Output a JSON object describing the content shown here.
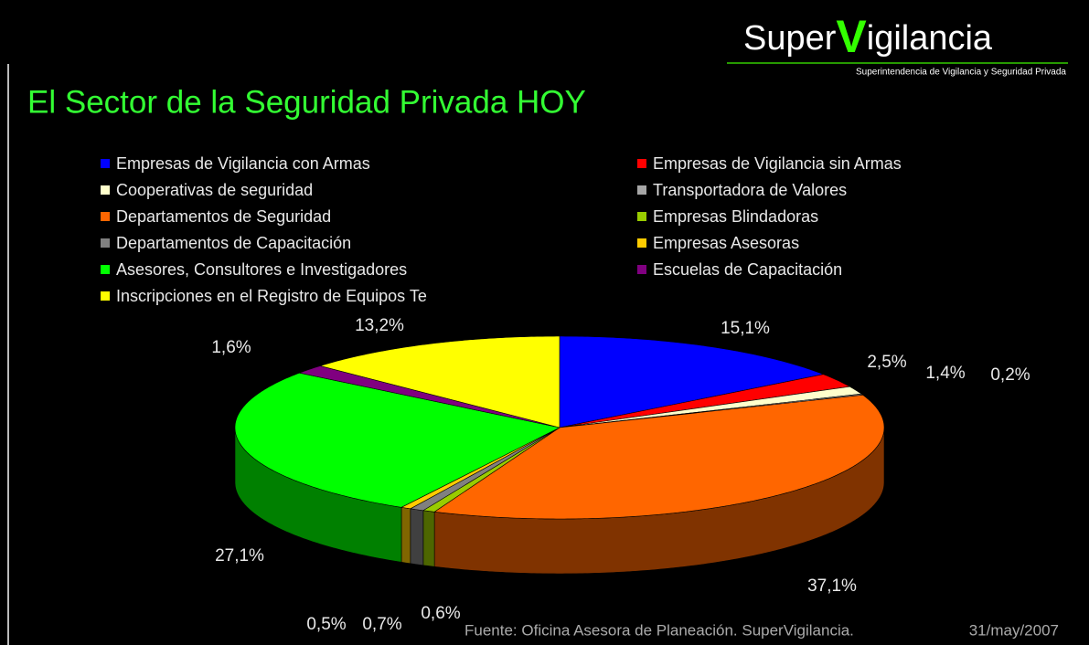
{
  "logo": {
    "part1": "Super",
    "part2": "V",
    "part3": "igilancia",
    "subtitle": "Superintendencia de Vigilancia y Seguridad Privada"
  },
  "chart_data": {
    "type": "pie",
    "title": "El Sector de la Seguridad Privada HOY",
    "categories": [
      "Empresas de Vigilancia con Armas",
      "Empresas de Vigilancia sin Armas",
      "Cooperativas de seguridad",
      "Transportadora de Valores",
      "Departamentos de Seguridad",
      "Empresas Blindadoras",
      "Departamentos de Capacitación",
      "Empresas Asesoras",
      "Asesores, Consultores e Investigadores",
      "Escuelas de Capacitación",
      "Inscripciones en el Registro de Equipos Te"
    ],
    "values": [
      15.1,
      2.5,
      1.4,
      0.2,
      37.1,
      0.6,
      0.7,
      0.5,
      27.1,
      1.6,
      13.2
    ],
    "value_labels": [
      "15,1%",
      "2,5%",
      "1,4%",
      "0,2%",
      "37,1%",
      "0,6%",
      "0,7%",
      "0,5%",
      "27,1%",
      "1,6%",
      "13,2%"
    ],
    "colors": [
      "#0000ff",
      "#ff0000",
      "#ffffcc",
      "#a6a6a6",
      "#ff6600",
      "#99cc00",
      "#808080",
      "#ffcc00",
      "#00ff00",
      "#800080",
      "#ffff00"
    ],
    "source": "Fuente: Oficina Asesora de Planeación. SuperVigilancia.",
    "date": "31/may/2007"
  }
}
